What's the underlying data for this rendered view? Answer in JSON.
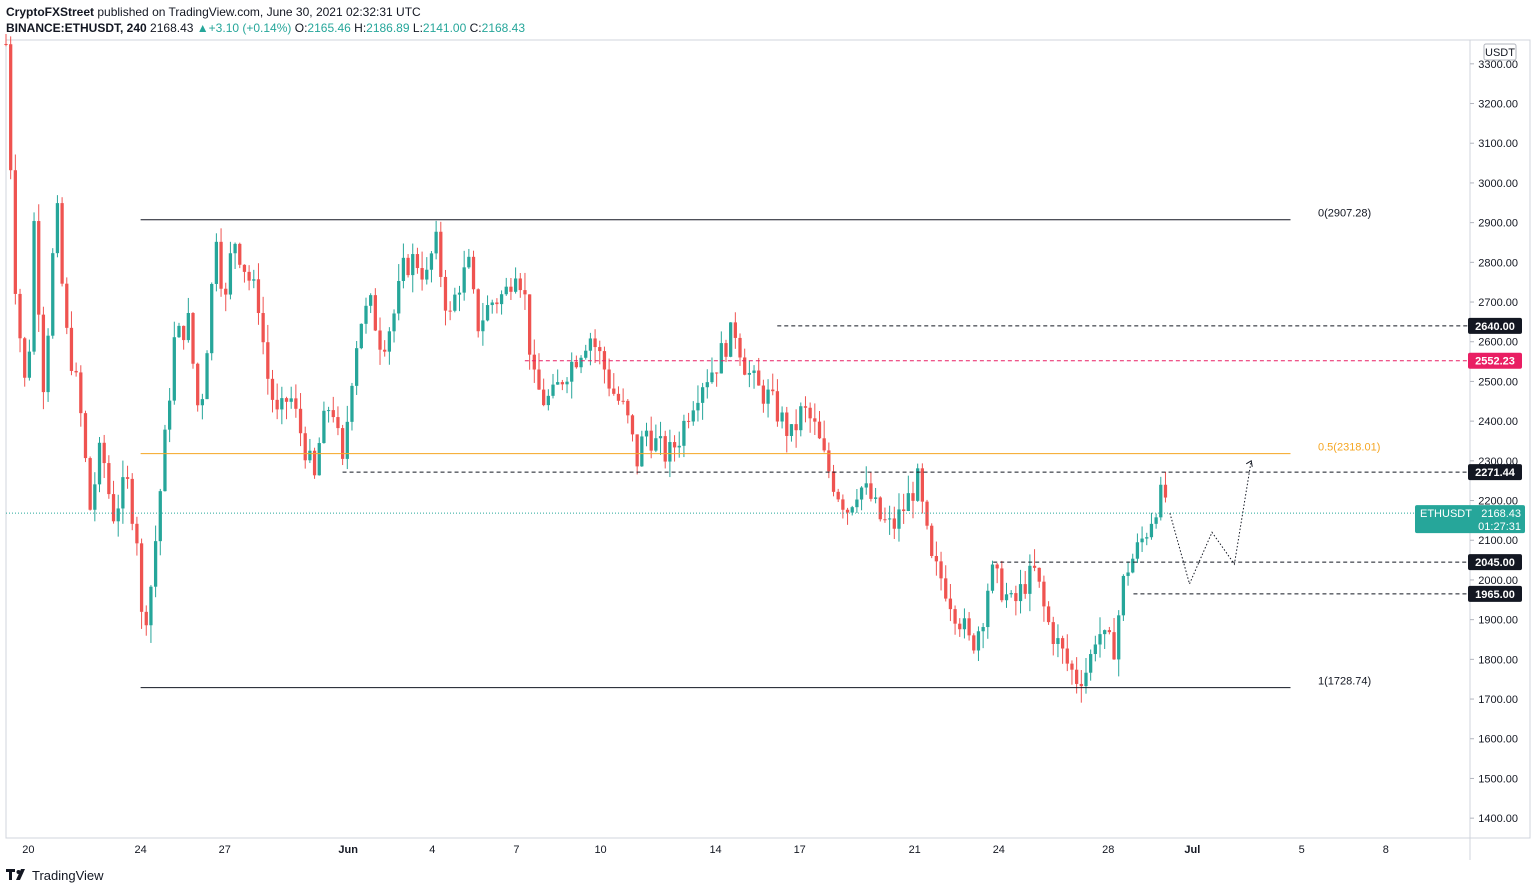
{
  "header": {
    "publisher": "CryptoFXStreet",
    "published_text": "published on TradingView.com, June 30, 2021 02:32:31 UTC",
    "symbol": "BINANCE:ETHUSDT, 240",
    "last": "2168.43",
    "change": "+3.10 (+0.14%)",
    "o_label": "O:",
    "o_val": "2165.46",
    "h_label": "H:",
    "h_val": "2186.89",
    "l_label": "L:",
    "l_val": "2141.00",
    "c_label": "C:",
    "c_val": "2168.43"
  },
  "footer": {
    "brand": "TradingView"
  },
  "colors": {
    "up": "#26a69a",
    "down": "#ef5350",
    "fib_mid": "#f5a623",
    "pink_level": "#e91e63",
    "dark_label": "#131722"
  },
  "chart_data": {
    "type": "candlestick",
    "currency": "USDT",
    "ylim": [
      1350,
      3360
    ],
    "y_ticks": [
      1400,
      1500,
      1600,
      1700,
      1800,
      1900,
      2000,
      2100,
      2200,
      2300,
      2400,
      2500,
      2600,
      2700,
      2800,
      2900,
      3000,
      3100,
      3200,
      3300
    ],
    "y_tick_labels": [
      "1400.00",
      "1500.00",
      "1600.00",
      "1700.00",
      "1800.00",
      "1900.00",
      "2000.00",
      "2100.00",
      "2200.00",
      "2300.00",
      "2400.00",
      "2500.00",
      "2600.00",
      "2700.00",
      "2800.00",
      "2900.00",
      "3000.00",
      "3100.00",
      "3200.00",
      "3300.00"
    ],
    "x_ticks": [
      {
        "label": "20",
        "x": 0.8
      },
      {
        "label": "24",
        "x": 4.8
      },
      {
        "label": "27",
        "x": 7.8
      },
      {
        "label": "Jun",
        "x": 12.2
      },
      {
        "label": "4",
        "x": 15.2
      },
      {
        "label": "7",
        "x": 18.2
      },
      {
        "label": "10",
        "x": 21.2
      },
      {
        "label": "14",
        "x": 25.3
      },
      {
        "label": "17",
        "x": 28.3
      },
      {
        "label": "21",
        "x": 32.4
      },
      {
        "label": "24",
        "x": 35.4
      },
      {
        "label": "28",
        "x": 39.3
      },
      {
        "label": "Jul",
        "x": 42.3
      },
      {
        "label": "5",
        "x": 46.2
      },
      {
        "label": "8",
        "x": 49.2
      }
    ],
    "x_range": [
      0,
      52.2
    ],
    "candle_step": 0.1667,
    "anchors": [
      [
        0,
        3350
      ],
      [
        0.35,
        2720
      ],
      [
        0.75,
        2440
      ],
      [
        1,
        2900
      ],
      [
        1.35,
        2480
      ],
      [
        1.8,
        2950
      ],
      [
        2.1,
        2640
      ],
      [
        2.6,
        2460
      ],
      [
        3.0,
        2180
      ],
      [
        3.4,
        2340
      ],
      [
        3.8,
        2160
      ],
      [
        4.3,
        2250
      ],
      [
        4.7,
        2100
      ],
      [
        4.85,
        1880
      ],
      [
        5.0,
        1920
      ],
      [
        5.2,
        2000
      ],
      [
        5.6,
        2300
      ],
      [
        6.0,
        2600
      ],
      [
        6.5,
        2650
      ],
      [
        6.9,
        2400
      ],
      [
        7.2,
        2620
      ],
      [
        7.5,
        2880
      ],
      [
        7.8,
        2680
      ],
      [
        8.1,
        2870
      ],
      [
        8.6,
        2770
      ],
      [
        9.0,
        2700
      ],
      [
        9.3,
        2520
      ],
      [
        9.7,
        2400
      ],
      [
        10.1,
        2470
      ],
      [
        10.6,
        2350
      ],
      [
        11.0,
        2250
      ],
      [
        11.2,
        2360
      ],
      [
        11.6,
        2460
      ],
      [
        12.0,
        2280
      ],
      [
        12.3,
        2500
      ],
      [
        12.6,
        2650
      ],
      [
        13.0,
        2690
      ],
      [
        13.4,
        2590
      ],
      [
        13.8,
        2660
      ],
      [
        14.2,
        2790
      ],
      [
        14.6,
        2810
      ],
      [
        15.0,
        2760
      ],
      [
        15.3,
        2860
      ],
      [
        15.8,
        2650
      ],
      [
        16.1,
        2740
      ],
      [
        16.5,
        2790
      ],
      [
        16.8,
        2640
      ],
      [
        17.3,
        2700
      ],
      [
        17.8,
        2720
      ],
      [
        18.2,
        2800
      ],
      [
        18.5,
        2710
      ],
      [
        18.8,
        2500
      ],
      [
        19.2,
        2450
      ],
      [
        19.5,
        2460
      ],
      [
        19.9,
        2520
      ],
      [
        20.3,
        2560
      ],
      [
        20.8,
        2620
      ],
      [
        21.2,
        2560
      ],
      [
        21.6,
        2480
      ],
      [
        22.1,
        2420
      ],
      [
        22.5,
        2300
      ],
      [
        22.8,
        2380
      ],
      [
        23.2,
        2340
      ],
      [
        23.6,
        2310
      ],
      [
        24.0,
        2360
      ],
      [
        24.4,
        2440
      ],
      [
        24.8,
        2500
      ],
      [
        25.3,
        2540
      ],
      [
        25.7,
        2600
      ],
      [
        26.0,
        2630
      ],
      [
        26.4,
        2530
      ],
      [
        26.8,
        2480
      ],
      [
        27.2,
        2460
      ],
      [
        27.6,
        2410
      ],
      [
        28.0,
        2360
      ],
      [
        28.4,
        2430
      ],
      [
        28.8,
        2390
      ],
      [
        29.2,
        2300
      ],
      [
        29.6,
        2230
      ],
      [
        30.0,
        2180
      ],
      [
        30.4,
        2240
      ],
      [
        30.8,
        2210
      ],
      [
        31.2,
        2150
      ],
      [
        31.6,
        2130
      ],
      [
        32.0,
        2180
      ],
      [
        32.5,
        2250
      ],
      [
        33.0,
        2040
      ],
      [
        33.4,
        2000
      ],
      [
        33.8,
        1930
      ],
      [
        34.1,
        1890
      ],
      [
        34.4,
        1830
      ],
      [
        34.8,
        1900
      ],
      [
        35.1,
        2020
      ],
      [
        35.5,
        1980
      ],
      [
        35.9,
        1930
      ],
      [
        36.3,
        1990
      ],
      [
        36.7,
        2020
      ],
      [
        37.1,
        1900
      ],
      [
        37.5,
        1840
      ],
      [
        37.9,
        1780
      ],
      [
        38.2,
        1750
      ],
      [
        38.6,
        1780
      ],
      [
        38.9,
        1880
      ],
      [
        39.2,
        1840
      ],
      [
        39.5,
        1830
      ],
      [
        39.9,
        2020
      ],
      [
        40.3,
        2070
      ],
      [
        40.7,
        2130
      ],
      [
        41.0,
        2190
      ],
      [
        41.3,
        2220
      ],
      [
        41.5,
        2168
      ]
    ],
    "forecast_path": [
      [
        41.5,
        2168
      ],
      [
        42.2,
        1990
      ],
      [
        43.0,
        2120
      ],
      [
        43.8,
        2040
      ],
      [
        44.4,
        2300
      ]
    ],
    "levels": [
      {
        "name": "fib-0",
        "price": 2907.28,
        "x_from": 4.8,
        "x_to": 45.8,
        "style": "solid-dark",
        "label": "0(2907.28)"
      },
      {
        "name": "fib-1",
        "price": 1728.74,
        "x_from": 4.8,
        "x_to": 45.8,
        "style": "solid-dark",
        "label": "1(1728.74)"
      },
      {
        "name": "fib-0.5",
        "price": 2318.01,
        "x_from": 4.8,
        "x_to": 45.8,
        "style": "solid-orange",
        "label": "0.5(2318.01)"
      },
      {
        "name": "resistance-2640",
        "price": 2640.0,
        "x_from": 27.5,
        "x_to": 53.5,
        "style": "dashed-dark",
        "tag": "2640.00"
      },
      {
        "name": "resistance-2552",
        "price": 2552.23,
        "x_from": 18.5,
        "x_to": 53.5,
        "style": "dashed-pink",
        "tag": "2552.23"
      },
      {
        "name": "resistance-2271",
        "price": 2271.44,
        "x_from": 12.0,
        "x_to": 53.5,
        "style": "dashed-dark",
        "tag": "2271.44"
      },
      {
        "name": "support-2045",
        "price": 2045.0,
        "x_from": 35.2,
        "x_to": 53.5,
        "style": "dashed-dark",
        "tag": "2045.00"
      },
      {
        "name": "support-1965",
        "price": 1965.0,
        "x_from": 40.2,
        "x_to": 53.5,
        "style": "dashed-dark",
        "tag": "1965.00"
      }
    ],
    "current_price": {
      "symbol": "ETHUSDT",
      "price": 2168.43,
      "label": "2168.43",
      "countdown": "01:27:31"
    }
  }
}
